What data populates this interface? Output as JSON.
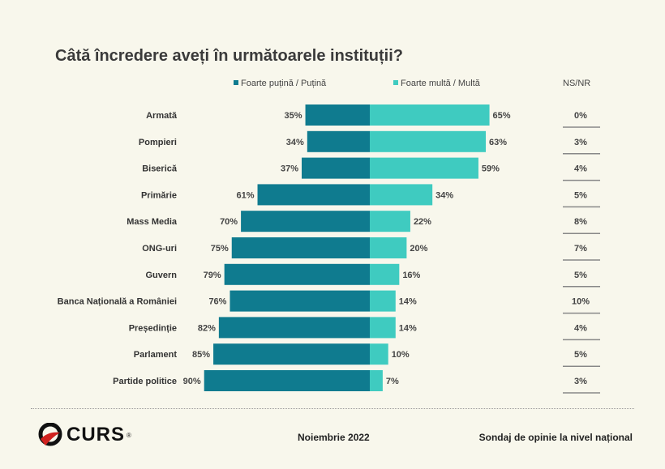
{
  "title": "Câtă încredere aveți în următoarele instituții?",
  "colors": {
    "low": "#0f7b8f",
    "high": "#3fcbc0",
    "background": "#f8f7ec"
  },
  "chart_data": {
    "type": "bar",
    "orientation": "horizontal-diverging",
    "title": "Câtă încredere aveți în următoarele instituții?",
    "categories": [
      "Armată",
      "Pompieri",
      "Biserică",
      "Primărie",
      "Mass Media",
      "ONG-uri",
      "Guvern",
      "Banca Națională a României",
      "Președinție",
      "Parlament",
      "Partide politice"
    ],
    "series": [
      {
        "name": "Foarte puțină / Puțină",
        "values": [
          35,
          34,
          37,
          61,
          70,
          75,
          79,
          76,
          82,
          85,
          90
        ]
      },
      {
        "name": "Foarte multă / Multă",
        "values": [
          65,
          63,
          59,
          34,
          22,
          20,
          16,
          14,
          14,
          10,
          7
        ]
      }
    ],
    "ns_nr": {
      "name": "NS/NR",
      "values": [
        0,
        3,
        4,
        5,
        8,
        7,
        5,
        10,
        4,
        5,
        3
      ]
    },
    "unit": "%",
    "legend": "top"
  },
  "footer": {
    "logo": "CURS",
    "date": "Noiembrie 2022",
    "source": "Sondaj de opinie la nivel național"
  }
}
